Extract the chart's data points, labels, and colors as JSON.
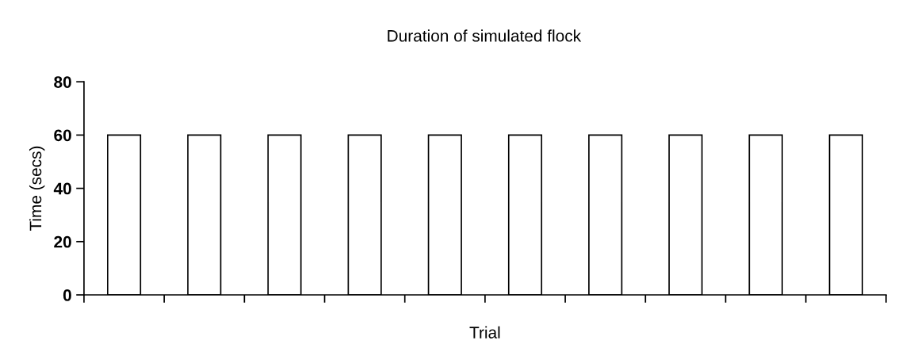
{
  "chart_data": {
    "type": "bar",
    "title": "Duration of simulated flock",
    "xlabel": "Trial",
    "ylabel": "Time (secs)",
    "categories": [
      null,
      null,
      null,
      null,
      null,
      null,
      null,
      null,
      null,
      null
    ],
    "values": [
      60,
      60,
      60,
      60,
      60,
      60,
      60,
      60,
      60,
      60
    ],
    "color": "#ffffff",
    "ylim": [
      0,
      80
    ],
    "yticks": [
      0,
      20,
      40,
      60,
      80
    ],
    "grid": false,
    "legend": false
  }
}
